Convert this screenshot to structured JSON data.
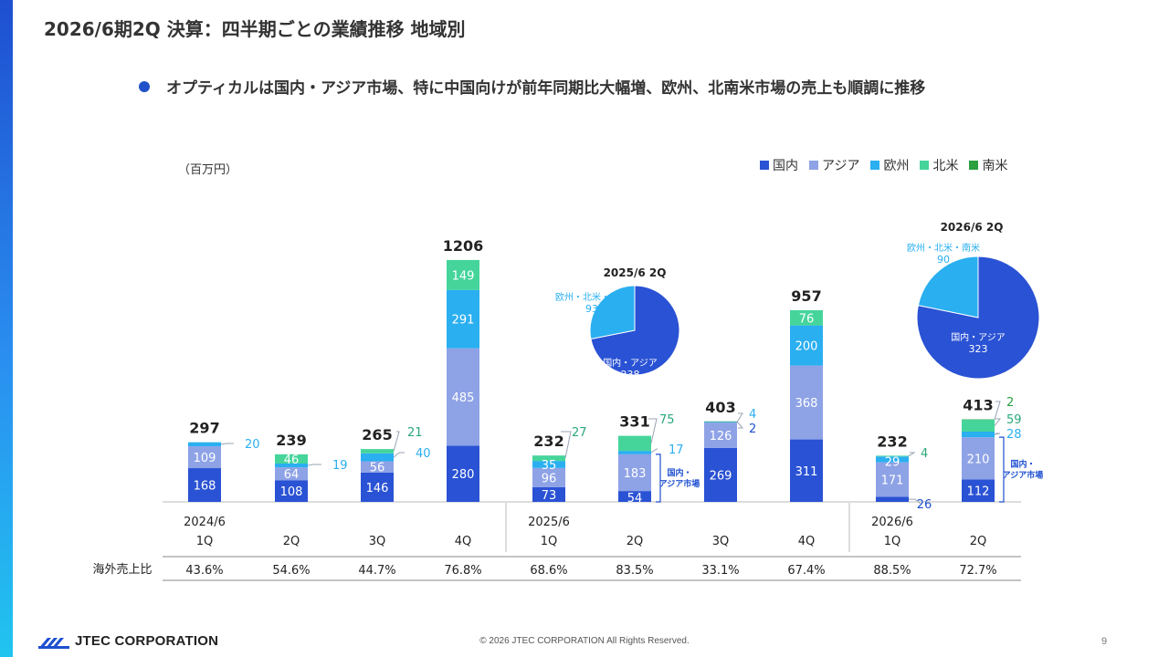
{
  "title": "2026/6期2Q 決算：四半期ごとの業績推移 地域別",
  "bullet": "オプティカルは国内・アジア市場、特に中国向けが前年同期比大幅増、欧州、北南米市場の売上も順調に推移",
  "unit": "（百万円）",
  "legend": [
    {
      "label": "国内",
      "color": "#2a52d4"
    },
    {
      "label": "アジア",
      "color": "#8ea2e6"
    },
    {
      "label": "欧州",
      "color": "#2aaff0"
    },
    {
      "label": "北米",
      "color": "#45d59b"
    },
    {
      "label": "南米",
      "color": "#2aa03e"
    }
  ],
  "chart_data": {
    "type": "bar",
    "stacked": true,
    "categories": [
      "2024/6 1Q",
      "2Q",
      "3Q",
      "4Q",
      "2025/6 1Q",
      "2Q",
      "3Q",
      "4Q",
      "2026/6 1Q",
      "2Q"
    ],
    "year_labels": [
      "2024/6",
      "",
      "",
      "",
      "2025/6",
      "",
      "",
      "",
      "2026/6",
      ""
    ],
    "quarter_labels": [
      "1Q",
      "2Q",
      "3Q",
      "4Q",
      "1Q",
      "2Q",
      "3Q",
      "4Q",
      "1Q",
      "2Q"
    ],
    "series": [
      {
        "name": "国内",
        "color": "#2a52d4",
        "values": [
          168,
          108,
          146,
          280,
          73,
          54,
          269,
          311,
          26,
          112
        ]
      },
      {
        "name": "アジア",
        "color": "#8ea2e6",
        "values": [
          109,
          64,
          56,
          485,
          96,
          183,
          126,
          368,
          171,
          210
        ]
      },
      {
        "name": "欧州",
        "color": "#2aaff0",
        "values": [
          20,
          19,
          40,
          291,
          35,
          17,
          4,
          200,
          29,
          28
        ]
      },
      {
        "name": "北米",
        "color": "#45d59b",
        "values": [
          0,
          46,
          21,
          149,
          27,
          75,
          0,
          76,
          4,
          59
        ]
      },
      {
        "name": "南米",
        "color": "#2aa03e",
        "values": [
          0,
          0,
          0,
          0,
          0,
          0,
          2,
          0,
          0,
          2
        ]
      }
    ],
    "totals": [
      297,
      239,
      265,
      1206,
      232,
      331,
      403,
      957,
      232,
      413
    ],
    "ratio_label": "海外売上比",
    "ratios": [
      "43.6%",
      "54.6%",
      "44.7%",
      "76.8%",
      "68.6%",
      "83.5%",
      "33.1%",
      "67.4%",
      "88.5%",
      "72.7%"
    ],
    "bracket_label_line1": "国内・",
    "bracket_label_line2": "アジア市場",
    "pies": [
      {
        "title": "2025/6 2Q",
        "slices": [
          {
            "label": "国内・アジア",
            "value": 238,
            "color": "#2a52d4"
          },
          {
            "label": "欧州・北米・南米",
            "value": 93,
            "color": "#2aaff0"
          }
        ]
      },
      {
        "title": "2026/6 2Q",
        "slices": [
          {
            "label": "国内・アジア",
            "value": 323,
            "color": "#2a52d4"
          },
          {
            "label": "欧州・北米・南米",
            "value": 90,
            "color": "#2aaff0"
          }
        ]
      }
    ]
  },
  "footer": {
    "logo_text": "JTEC CORPORATION",
    "copyright": "© 2026 JTEC CORPORATION All Rights Reserved.",
    "page": "9"
  }
}
